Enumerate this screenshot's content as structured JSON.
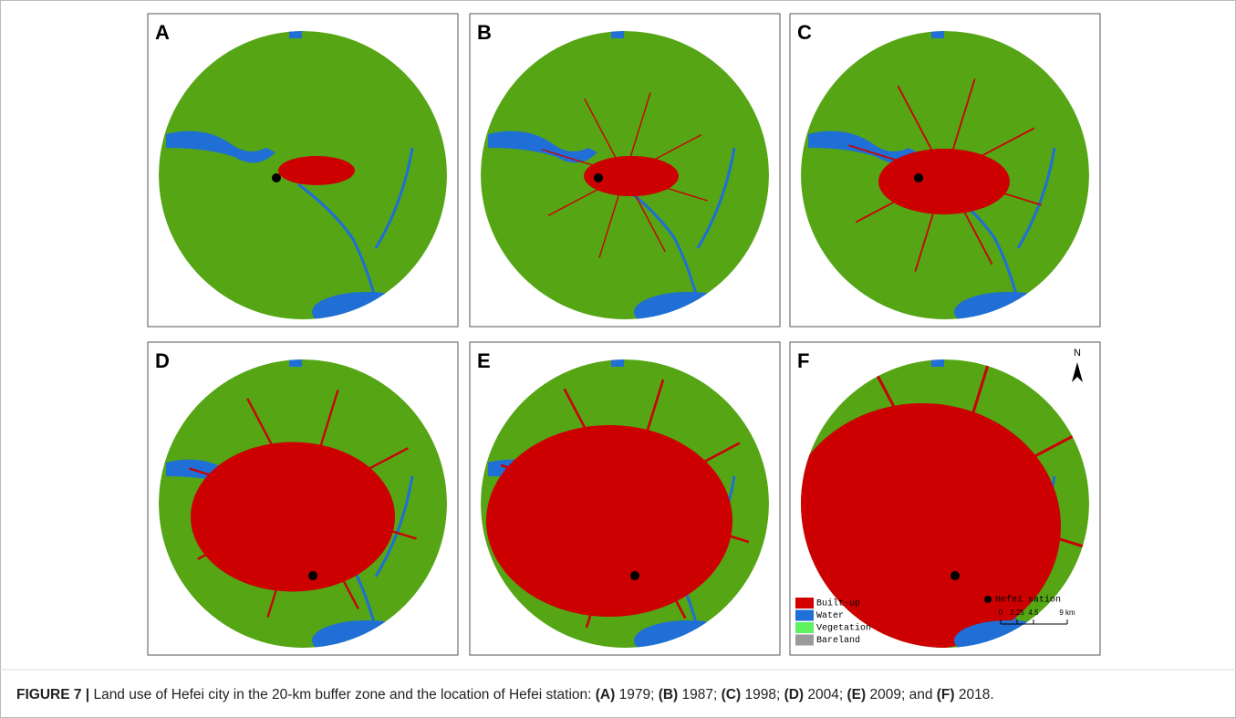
{
  "panels": [
    {
      "label": "A"
    },
    {
      "label": "B"
    },
    {
      "label": "C"
    },
    {
      "label": "D"
    },
    {
      "label": "E"
    },
    {
      "label": "F"
    }
  ],
  "legend": {
    "items": [
      {
        "label": "Built-up",
        "color": "#d40000"
      },
      {
        "label": "Water",
        "color": "#1f6fd6"
      },
      {
        "label": "Vegetation",
        "color": "#5ef25e"
      },
      {
        "label": "Bareland",
        "color": "#9a9a9a"
      }
    ],
    "station": "Hefei sation"
  },
  "scale_bar": {
    "labels": [
      "0",
      "2.25",
      "4.5",
      "9 km"
    ]
  },
  "north": "N",
  "caption": {
    "parts": [
      {
        "text": "FIGURE 7 |",
        "bold": true
      },
      {
        "text": " Land use of Hefei city in the 20-km buffer zone and the location of Hefei station: ",
        "bold": false
      },
      {
        "text": "(A)",
        "bold": true
      },
      {
        "text": " 1979; ",
        "bold": false
      },
      {
        "text": "(B)",
        "bold": true
      },
      {
        "text": " 1987; ",
        "bold": false
      },
      {
        "text": "(C)",
        "bold": true
      },
      {
        "text": " 1998; ",
        "bold": false
      },
      {
        "text": "(D)",
        "bold": true
      },
      {
        "text": " 2004; ",
        "bold": false
      },
      {
        "text": "(E)",
        "bold": true
      },
      {
        "text": " 2009; and ",
        "bold": false
      },
      {
        "text": "(F)",
        "bold": true
      },
      {
        "text": " 2018.",
        "bold": false
      }
    ]
  }
}
